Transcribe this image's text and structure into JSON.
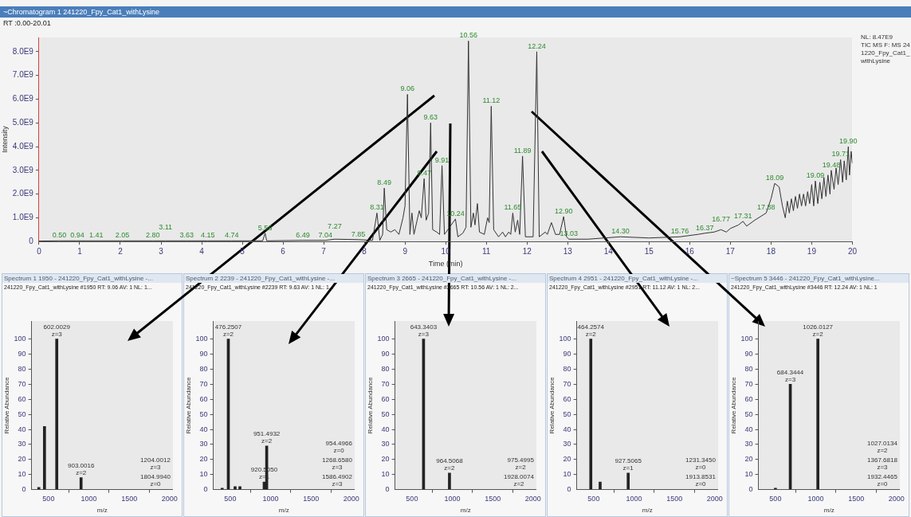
{
  "chart_data": [
    {
      "type": "line",
      "title": "~Chromatogram 1 241220_Fpy_Cat1_withLysine",
      "subtitle": "RT :0.00-20.01",
      "xlabel": "Time (min)",
      "ylabel": "Intensity",
      "xlim": [
        0,
        20
      ],
      "xticks": [
        0,
        1,
        2,
        3,
        4,
        5,
        6,
        7,
        8,
        9,
        10,
        11,
        12,
        13,
        14,
        15,
        16,
        17,
        18,
        19,
        20
      ],
      "ylim": [
        0,
        8600000000.0
      ],
      "yticks": [
        0,
        {
          "value": 1000000000.0,
          "label": "1.0E9"
        },
        {
          "value": 2000000000.0,
          "label": "2.0E9"
        },
        {
          "value": 3000000000.0,
          "label": "3.0E9"
        },
        {
          "value": 4000000000.0,
          "label": "4.0E9"
        },
        {
          "value": 5000000000.0,
          "label": "5.0E9"
        },
        {
          "value": 6000000000.0,
          "label": "6.0E9"
        },
        {
          "value": 7000000000.0,
          "label": "7.0E9"
        },
        {
          "value": 8000000000.0,
          "label": "8.0E9"
        }
      ],
      "x": [
        0,
        0.5,
        0.94,
        1.41,
        2.05,
        2.8,
        3.11,
        3.63,
        4.15,
        4.74,
        5.5,
        5.56,
        5.6,
        6.49,
        7.04,
        7.27,
        7.85,
        8.2,
        8.31,
        8.38,
        8.45,
        8.49,
        8.55,
        8.65,
        8.75,
        8.85,
        8.95,
        9.0,
        9.06,
        9.12,
        9.17,
        9.22,
        9.35,
        9.4,
        9.47,
        9.52,
        9.58,
        9.63,
        9.68,
        9.78,
        9.85,
        9.91,
        9.97,
        10.24,
        10.3,
        10.42,
        10.5,
        10.56,
        10.62,
        10.68,
        10.72,
        10.78,
        10.83,
        10.95,
        11.03,
        11.07,
        11.12,
        11.18,
        11.3,
        11.4,
        11.47,
        11.55,
        11.6,
        11.65,
        11.71,
        11.77,
        11.82,
        11.89,
        11.96,
        12.15,
        12.24,
        12.3,
        12.45,
        12.5,
        12.6,
        12.7,
        12.8,
        12.9,
        12.97,
        13.03,
        13.5,
        14.3,
        15.0,
        15.76,
        16.2,
        16.37,
        16.6,
        16.77,
        16.9,
        17.0,
        17.2,
        17.31,
        17.4,
        17.6,
        17.88,
        18.0,
        18.09,
        18.2,
        18.28,
        18.35,
        18.4,
        18.45,
        18.5,
        18.55,
        18.6,
        18.65,
        18.7,
        18.75,
        18.8,
        18.85,
        18.9,
        18.95,
        19.0,
        19.05,
        19.09,
        19.15,
        19.2,
        19.25,
        19.3,
        19.35,
        19.4,
        19.45,
        19.48,
        19.55,
        19.6,
        19.65,
        19.71,
        19.76,
        19.8,
        19.85,
        19.9,
        19.93,
        19.97,
        20.0
      ],
      "series": [
        {
          "color": "#333333",
          "values": [
            20000000.0,
            30000000.0,
            30000000.0,
            30000000.0,
            30000000.0,
            30000000.0,
            30000000.0,
            30000000.0,
            30000000.0,
            30000000.0,
            30000000.0,
            350000000.0,
            30000000.0,
            50000000.0,
            50000000.0,
            100000000.0,
            80000000.0,
            50000000.0,
            1200000000.0,
            50000000.0,
            300000000.0,
            2250000000.0,
            500000000.0,
            400000000.0,
            500000000.0,
            300000000.0,
            1000000000.0,
            1500000000.0,
            6200000000.0,
            300000000.0,
            1200000000.0,
            300000000.0,
            1300000000.0,
            1000000000.0,
            2650000000.0,
            900000000.0,
            1200000000.0,
            5000000000.0,
            500000000.0,
            400000000.0,
            300000000.0,
            3200000000.0,
            300000000.0,
            950000000.0,
            200000000.0,
            350000000.0,
            600000000.0,
            8450000000.0,
            600000000.0,
            1200000000.0,
            700000000.0,
            1600000000.0,
            400000000.0,
            300000000.0,
            1000000000.0,
            800000000.0,
            5700000000.0,
            500000000.0,
            200000000.0,
            400000000.0,
            200000000.0,
            400000000.0,
            300000000.0,
            1200000000.0,
            400000000.0,
            900000000.0,
            300000000.0,
            3600000000.0,
            200000000.0,
            200000000.0,
            8000000000.0,
            200000000.0,
            400000000.0,
            300000000.0,
            800000000.0,
            300000000.0,
            300000000.0,
            1050000000.0,
            200000000.0,
            100000000.0,
            100000000.0,
            200000000.0,
            150000000.0,
            200000000.0,
            300000000.0,
            350000000.0,
            400000000.0,
            500000000.0,
            400000000.0,
            550000000.0,
            700000000.0,
            850000000.0,
            650000000.0,
            900000000.0,
            1200000000.0,
            1800000000.0,
            2450000000.0,
            2300000000.0,
            1500000000.0,
            1000000000.0,
            1700000000.0,
            1200000000.0,
            1800000000.0,
            1300000000.0,
            1900000000.0,
            1400000000.0,
            2000000000.0,
            1500000000.0,
            2000000000.0,
            1500000000.0,
            2100000000.0,
            1600000000.0,
            2400000000.0,
            1500000000.0,
            2550000000.0,
            1600000000.0,
            2500000000.0,
            1800000000.0,
            2700000000.0,
            1900000000.0,
            2800000000.0,
            2000000000.0,
            3000000000.0,
            2200000000.0,
            3100000000.0,
            2400000000.0,
            3450000000.0,
            2500000000.0,
            3400000000.0,
            2600000000.0,
            4000000000.0,
            2800000000.0,
            3800000000.0,
            3300000000.0
          ]
        }
      ],
      "annotations": [
        "NL: 8.47E9",
        "TIC MS F: MS 241220_Fpy_Cat1_withLysine",
        {
          "text": "0.50",
          "x": 0.5,
          "y": 30000000.0
        },
        {
          "text": "0.94",
          "x": 0.94,
          "y": 30000000.0
        },
        {
          "text": "1.41",
          "x": 1.41,
          "y": 30000000.0
        },
        {
          "text": "2.05",
          "x": 2.05,
          "y": 30000000.0
        },
        {
          "text": "2.80",
          "x": 2.8,
          "y": 30000000.0
        },
        {
          "text": "3.11",
          "x": 3.11,
          "y": 30000000.0
        },
        {
          "text": "3.63",
          "x": 3.63,
          "y": 30000000.0
        },
        {
          "text": "4.15",
          "x": 4.15,
          "y": 30000000.0
        },
        {
          "text": "4.74",
          "x": 4.74,
          "y": 30000000.0
        },
        {
          "text": "5.56",
          "x": 5.56,
          "y": 350000000.0
        },
        {
          "text": "6.49",
          "x": 6.49,
          "y": 50000000.0
        },
        {
          "text": "7.04",
          "x": 7.04,
          "y": 50000000.0
        },
        {
          "text": "7.27",
          "x": 7.27,
          "y": 100000000.0
        },
        {
          "text": "7.85",
          "x": 7.85,
          "y": 80000000.0
        },
        {
          "text": "8.31",
          "x": 8.31,
          "y": 1200000000.0
        },
        {
          "text": "8.49",
          "x": 8.49,
          "y": 2250000000.0
        },
        {
          "text": "9.06",
          "x": 9.06,
          "y": 6200000000.0
        },
        {
          "text": "9.47",
          "x": 9.47,
          "y": 2650000000.0
        },
        {
          "text": "9.63",
          "x": 9.63,
          "y": 5000000000.0
        },
        {
          "text": "9.91",
          "x": 9.91,
          "y": 3200000000.0
        },
        {
          "text": "10.24",
          "x": 10.24,
          "y": 950000000.0
        },
        {
          "text": "10.56",
          "x": 10.56,
          "y": 8450000000.0
        },
        {
          "text": "11.12",
          "x": 11.12,
          "y": 5700000000.0
        },
        {
          "text": "11.65",
          "x": 11.65,
          "y": 1200000000.0
        },
        {
          "text": "11.89",
          "x": 11.89,
          "y": 3600000000.0
        },
        {
          "text": "12.24",
          "x": 12.24,
          "y": 8000000000.0
        },
        {
          "text": "12.90",
          "x": 12.9,
          "y": 1050000000.0
        },
        {
          "text": "13.03",
          "x": 13.03,
          "y": 100000000.0
        },
        {
          "text": "14.30",
          "x": 14.3,
          "y": 200000000.0
        },
        {
          "text": "15.76",
          "x": 15.76,
          "y": 200000000.0
        },
        {
          "text": "16.37",
          "x": 16.37,
          "y": 350000000.0
        },
        {
          "text": "16.77",
          "x": 16.77,
          "y": 500000000.0
        },
        {
          "text": "17.31",
          "x": 17.31,
          "y": 850000000.0
        },
        {
          "text": "17.88",
          "x": 17.88,
          "y": 1200000000.0
        },
        {
          "text": "18.09",
          "x": 18.09,
          "y": 2450000000.0
        },
        {
          "text": "19.09",
          "x": 19.09,
          "y": 2550000000.0
        },
        {
          "text": "19.48",
          "x": 19.48,
          "y": 3000000000.0
        },
        {
          "text": "19.71",
          "x": 19.71,
          "y": 3450000000.0
        },
        {
          "text": "19.90",
          "x": 19.9,
          "y": 4000000000.0
        }
      ]
    },
    {
      "type": "bar",
      "title": "Spectrum 1 1950 - 241220_Fpy_Cat1_withLysine -...",
      "subtitle": "241220_Fpy_Cat1_withLysine #1950 RT: 9.06 AV: 1 NL: 1...",
      "xlabel": "m/z",
      "ylabel": "Relative Abundance",
      "xlim": [
        290,
        2040
      ],
      "xticks": [
        500,
        1000,
        1500,
        2000
      ],
      "ylim": [
        0,
        112
      ],
      "yticks": [
        0,
        10,
        20,
        30,
        40,
        50,
        60,
        70,
        80,
        90,
        100
      ],
      "x": [
        380,
        450,
        602.0029,
        903.0016
      ],
      "series": [
        {
          "color": "#222222",
          "values": [
            1.5,
            42,
            100,
            8
          ]
        }
      ],
      "annotations": [
        {
          "text": "602.0029\nz=3",
          "x": 602.0029,
          "y": 100
        },
        {
          "text": "903.0016\nz=2",
          "x": 903.0016,
          "y": 8
        },
        "1204.0012\nz=3",
        "1804.9940\nz=0"
      ]
    },
    {
      "type": "bar",
      "title": "Spectrum 2 2239 - 241220_Fpy_Cat1_withLysine -...",
      "subtitle": "241220_Fpy_Cat1_withLysine #2239 RT: 9.63 AV: 1 NL: 1...",
      "xlabel": "m/z",
      "ylabel": "Relative Abundance",
      "xlim": [
        290,
        2040
      ],
      "xticks": [
        500,
        1000,
        1500,
        2000
      ],
      "ylim": [
        0,
        112
      ],
      "yticks": [
        0,
        10,
        20,
        30,
        40,
        50,
        60,
        70,
        80,
        90,
        100
      ],
      "x": [
        400,
        476.2507,
        560,
        620,
        920.505,
        951.4932
      ],
      "series": [
        {
          "color": "#222222",
          "values": [
            1,
            100,
            2,
            2,
            5,
            29
          ]
        }
      ],
      "annotations": [
        {
          "text": "476.2507\nz=2",
          "x": 476.2507,
          "y": 100
        },
        {
          "text": "951.4932\nz=2",
          "x": 951.4932,
          "y": 29
        },
        {
          "text": "920.5050\nz=1",
          "x": 920.505,
          "y": 5
        },
        "954.4966\nz=0",
        "1268.6580\nz=3",
        "1586.4902\nz=3"
      ]
    },
    {
      "type": "bar",
      "title": "Spectrum 3 2665 - 241220_Fpy_Cat1_withLysine -...",
      "subtitle": "241220_Fpy_Cat1_withLysine #2665 RT: 10.56 AV: 1 NL: 2...",
      "xlabel": "m/z",
      "ylabel": "Relative Abundance",
      "xlim": [
        290,
        2040
      ],
      "xticks": [
        500,
        1000,
        1500,
        2000
      ],
      "ylim": [
        0,
        112
      ],
      "yticks": [
        0,
        10,
        20,
        30,
        40,
        50,
        60,
        70,
        80,
        90,
        100
      ],
      "x": [
        643.3403,
        964.5068
      ],
      "series": [
        {
          "color": "#222222",
          "values": [
            100,
            11
          ]
        }
      ],
      "annotations": [
        {
          "text": "643.3403\nz=3",
          "x": 643.3403,
          "y": 100
        },
        {
          "text": "964.5068\nz=2",
          "x": 964.5068,
          "y": 11
        },
        "975.4995\nz=2",
        "1928.0074\nz=2"
      ]
    },
    {
      "type": "bar",
      "title": "Spectrum 4 2951 - 241220_Fpy_Cat1_withLysine -...",
      "subtitle": "241220_Fpy_Cat1_withLysine #2951 RT: 11.12 AV: 1 NL: 2...",
      "xlabel": "m/z",
      "ylabel": "Relative Abundance",
      "xlim": [
        290,
        2040
      ],
      "xticks": [
        500,
        1000,
        1500,
        2000
      ],
      "ylim": [
        0,
        112
      ],
      "yticks": [
        0,
        10,
        20,
        30,
        40,
        50,
        60,
        70,
        80,
        90,
        100
      ],
      "x": [
        464.2574,
        580,
        927.5065
      ],
      "series": [
        {
          "color": "#222222",
          "values": [
            100,
            5,
            11
          ]
        }
      ],
      "annotations": [
        {
          "text": "464.2574\nz=2",
          "x": 464.2574,
          "y": 100
        },
        {
          "text": "927.5065\nz=1",
          "x": 927.5065,
          "y": 11
        },
        "1231.3450\nz=0",
        "1913.8531\nz=0"
      ]
    },
    {
      "type": "bar",
      "title": "~Spectrum 5 3446 - 241220_Fpy_Cat1_withLysine...",
      "subtitle": "241220_Fpy_Cat1_withLysine #3446 RT: 12.24 AV: 1 NL: 1",
      "xlabel": "m/z",
      "ylabel": "Relative Abundance",
      "xlim": [
        290,
        2040
      ],
      "xticks": [
        500,
        1000,
        1500,
        2000
      ],
      "ylim": [
        0,
        112
      ],
      "yticks": [
        0,
        10,
        20,
        30,
        40,
        50,
        60,
        70,
        80,
        90,
        100
      ],
      "x": [
        500,
        684.3444,
        1026.0127
      ],
      "series": [
        {
          "color": "#222222",
          "values": [
            1,
            70,
            100
          ]
        }
      ],
      "annotations": [
        {
          "text": "1026.0127\nz=2",
          "x": 1026.0127,
          "y": 100
        },
        {
          "text": "684.3444\nz=3",
          "x": 684.3444,
          "y": 70
        },
        "1027.0134\nz=2",
        "1367.6818\nz=3",
        "1932.4465\nz=0"
      ]
    }
  ]
}
